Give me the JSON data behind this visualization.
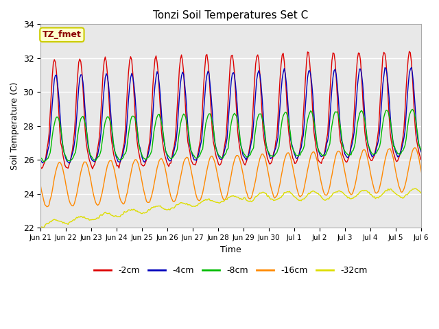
{
  "title": "Tonzi Soil Temperatures Set C",
  "xlabel": "Time",
  "ylabel": "Soil Temperature (C)",
  "ylim": [
    22,
    34
  ],
  "annotation_text": "TZ_fmet",
  "annotation_color": "#8B0000",
  "annotation_bg": "#FFFFCC",
  "annotation_border": "#CCCC00",
  "series": [
    "-2cm",
    "-4cm",
    "-8cm",
    "-16cm",
    "-32cm"
  ],
  "colors": [
    "#DD0000",
    "#0000BB",
    "#00BB00",
    "#FF8800",
    "#DDDD00"
  ],
  "background_color": "#E8E8E8",
  "grid_color": "#FFFFFF",
  "x_tick_labels": [
    "Jun 21",
    "Jun 22",
    "Jun 23",
    "Jun 24",
    "Jun 25",
    "Jun 26",
    "Jun 27",
    "Jun 28",
    "Jun 29",
    "Jun 30",
    "Jul 1",
    "Jul 2",
    "Jul 3",
    "Jul 4",
    "Jul 5",
    "Jul 6"
  ],
  "x_tick_positions": [
    0,
    1,
    2,
    3,
    4,
    5,
    6,
    7,
    8,
    9,
    10,
    11,
    12,
    13,
    14,
    15
  ],
  "figsize": [
    6.4,
    4.8
  ],
  "dpi": 100
}
